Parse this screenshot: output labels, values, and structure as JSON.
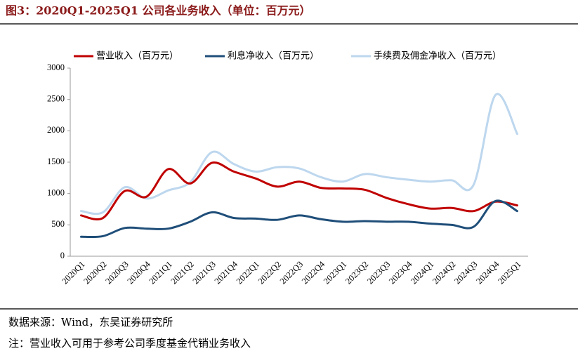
{
  "header": {
    "title": "图3：2020Q1-2025Q1 公司各业务收入（单位：百万元）"
  },
  "footer": {
    "source": "数据来源：Wind，东吴证券研究所",
    "note": "注：营业收入可用于参考公司季度基金代销业务收入"
  },
  "chart_data": {
    "type": "line",
    "categories": [
      "2020Q1",
      "2020Q2",
      "2020Q3",
      "2020Q4",
      "2021Q1",
      "2021Q2",
      "2021Q3",
      "2021Q4",
      "2022Q1",
      "2022Q2",
      "2022Q3",
      "2022Q4",
      "2023Q1",
      "2023Q2",
      "2023Q3",
      "2023Q4",
      "2024Q1",
      "2024Q2",
      "2024Q3",
      "2024Q4",
      "2025Q1"
    ],
    "series": [
      {
        "name": "营业收入（百万元）",
        "color": "#c00000",
        "values": [
          650,
          610,
          1040,
          950,
          1390,
          1160,
          1490,
          1350,
          1240,
          1110,
          1190,
          1090,
          1080,
          1060,
          930,
          830,
          760,
          770,
          720,
          870,
          810
        ]
      },
      {
        "name": "利息净收入（百万元）",
        "color": "#1f4e79",
        "values": [
          310,
          320,
          450,
          440,
          440,
          550,
          700,
          610,
          600,
          580,
          650,
          590,
          550,
          560,
          550,
          550,
          520,
          500,
          470,
          880,
          720
        ]
      },
      {
        "name": "手续费及佣金净收入（百万元）",
        "color": "#bdd7ee",
        "values": [
          720,
          700,
          1100,
          920,
          1050,
          1180,
          1660,
          1470,
          1350,
          1420,
          1400,
          1260,
          1190,
          1310,
          1260,
          1220,
          1190,
          1210,
          1140,
          2570,
          1950
        ]
      }
    ],
    "ylim": [
      0,
      3000
    ],
    "yticks": [
      0,
      500,
      1000,
      1500,
      2000,
      2500,
      3000
    ],
    "grid": false,
    "legend": "top"
  }
}
